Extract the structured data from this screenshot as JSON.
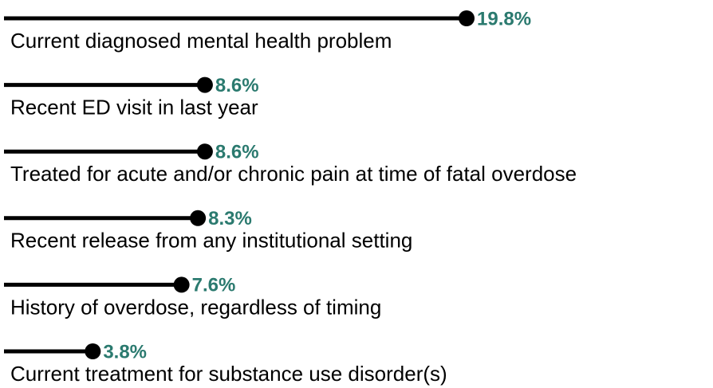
{
  "chart_data": {
    "type": "lollipop",
    "orientation": "horizontal",
    "categories": [
      "Current diagnosed mental health problem",
      "Recent ED visit in last year",
      "Treated for acute and/or chronic pain at time of fatal overdose",
      "Recent release from any institutional setting",
      "History of overdose, regardless of timing",
      "Current treatment for substance use disorder(s)"
    ],
    "values": [
      19.8,
      8.6,
      8.6,
      8.3,
      7.6,
      3.8
    ],
    "value_labels": [
      "19.8%",
      "8.6%",
      "8.6%",
      "8.3%",
      "7.6%",
      "3.8%"
    ],
    "color": "#000000"
  }
}
